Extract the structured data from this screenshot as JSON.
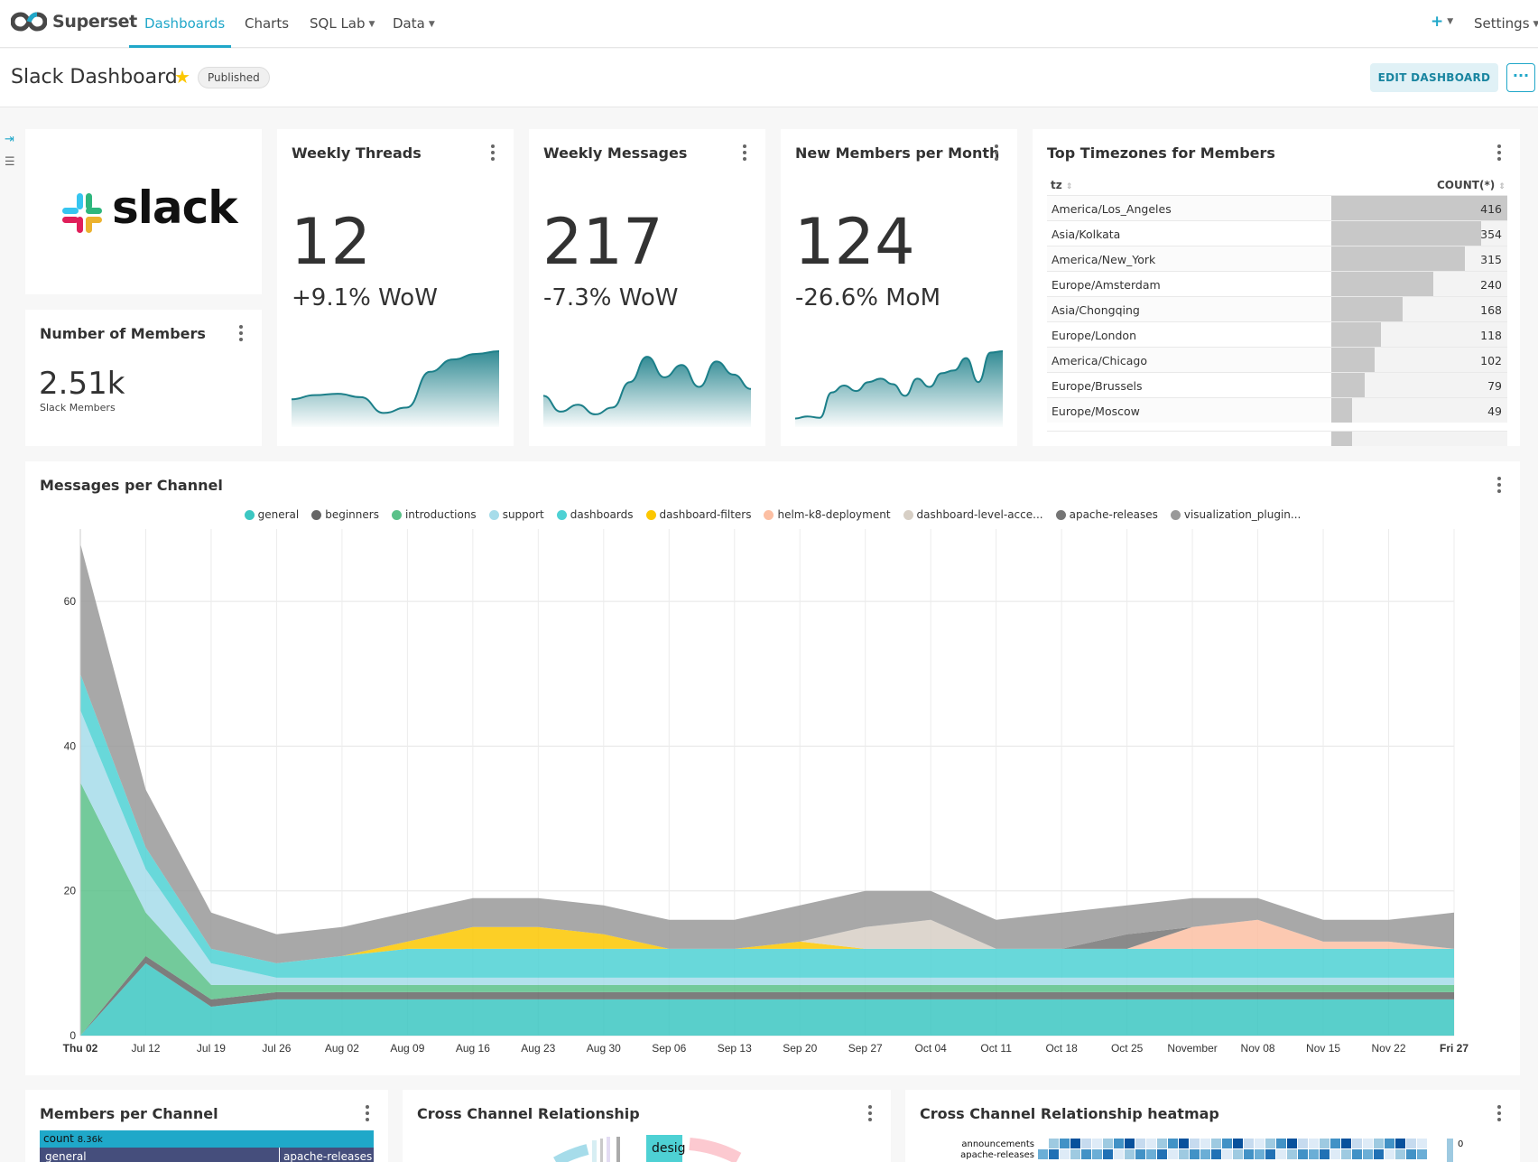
{
  "app": {
    "name": "Superset"
  },
  "nav": {
    "items": [
      {
        "label": "Dashboards",
        "active": true
      },
      {
        "label": "Charts"
      },
      {
        "label": "SQL Lab",
        "dropdown": true
      },
      {
        "label": "Data",
        "dropdown": true
      }
    ],
    "plus_icon": "plus-icon",
    "settings_label": "Settings"
  },
  "header": {
    "title": "Slack Dashboard",
    "starred": true,
    "status_badge": "Published",
    "edit_button": "EDIT DASHBOARD",
    "more_button": "···"
  },
  "cards": {
    "logo": {
      "text": "slack"
    },
    "members": {
      "title": "Number of Members",
      "value": "2.51k",
      "subtitle": "Slack Members"
    },
    "weekly_threads": {
      "title": "Weekly Threads",
      "value": "12",
      "change": "+9.1% WoW",
      "trend": [
        0.3,
        0.36,
        0.38,
        0.33,
        0.1,
        0.18,
        0.7,
        0.88,
        0.96,
        1.0
      ]
    },
    "weekly_messages": {
      "title": "Weekly Messages",
      "value": "217",
      "change": "-7.3% WoW",
      "trend": [
        0.35,
        0.12,
        0.22,
        0.08,
        0.18,
        0.55,
        0.92,
        0.62,
        0.8,
        0.48,
        0.85,
        0.66,
        0.45
      ]
    },
    "new_members": {
      "title": "New Members per Month",
      "value": "124",
      "change": "-26.6% MoM",
      "trend": [
        0.02,
        0.05,
        0.03,
        0.4,
        0.5,
        0.42,
        0.55,
        0.6,
        0.52,
        0.35,
        0.6,
        0.48,
        0.68,
        0.72,
        0.9,
        0.55,
        0.98,
        1.0
      ]
    },
    "timezones": {
      "title": "Top Timezones for Members",
      "columns": [
        "tz",
        "COUNT(*)"
      ],
      "rows": [
        {
          "tz": "America/Los_Angeles",
          "count": 416
        },
        {
          "tz": "Asia/Kolkata",
          "count": 354
        },
        {
          "tz": "America/New_York",
          "count": 315
        },
        {
          "tz": "Europe/Amsterdam",
          "count": 240
        },
        {
          "tz": "Asia/Chongqing",
          "count": 168
        },
        {
          "tz": "Europe/London",
          "count": 118
        },
        {
          "tz": "America/Chicago",
          "count": 102
        },
        {
          "tz": "Europe/Brussels",
          "count": 79
        },
        {
          "tz": "Europe/Moscow",
          "count": 49
        }
      ]
    },
    "messages_per_channel": {
      "title": "Messages per Channel"
    },
    "members_per_channel": {
      "title": "Members per Channel",
      "count_label": "count",
      "count_value": "8.36k",
      "general_label": "general",
      "releases_label": "apache-releases"
    },
    "cross_channel": {
      "title": "Cross Channel Relationship",
      "snippet": "desig"
    },
    "heatmap": {
      "title": "Cross Channel Relationship heatmap",
      "rows": [
        "announcements",
        "apache-releases"
      ],
      "scale_label": "0"
    }
  },
  "chart_data": {
    "type": "area",
    "title": "Messages per Channel",
    "stacked": true,
    "legend_position": "top",
    "grid": true,
    "ylim": [
      0,
      70
    ],
    "yticks": [
      0,
      20,
      40,
      60
    ],
    "xticks": [
      "Thu 02",
      "Jul 12",
      "Jul 19",
      "Jul 26",
      "Aug 02",
      "Aug 09",
      "Aug 16",
      "Aug 23",
      "Aug 30",
      "Sep 06",
      "Sep 13",
      "Sep 20",
      "Sep 27",
      "Oct 04",
      "Oct 11",
      "Oct 18",
      "Oct 25",
      "November",
      "Nov 08",
      "Nov 15",
      "Nov 22",
      "Fri 27"
    ],
    "series": [
      {
        "name": "general",
        "color": "#3cc7c2",
        "values": [
          0,
          10,
          4,
          5,
          5,
          5,
          5,
          5,
          5,
          5,
          5,
          5,
          5,
          5,
          5,
          5,
          5,
          5,
          5,
          5,
          5,
          5
        ]
      },
      {
        "name": "beginners",
        "color": "#666666",
        "values": [
          0,
          1,
          1,
          1,
          1,
          1,
          1,
          1,
          1,
          1,
          1,
          1,
          1,
          1,
          1,
          1,
          1,
          1,
          1,
          1,
          1,
          1
        ]
      },
      {
        "name": "introductions",
        "color": "#5ac189",
        "values": [
          35,
          6,
          2,
          1,
          1,
          1,
          1,
          1,
          1,
          1,
          1,
          1,
          1,
          1,
          1,
          1,
          1,
          1,
          1,
          1,
          1,
          1
        ]
      },
      {
        "name": "support",
        "color": "#a6dcea",
        "values": [
          10,
          6,
          3,
          1,
          1,
          1,
          1,
          1,
          1,
          1,
          1,
          1,
          1,
          1,
          1,
          1,
          1,
          1,
          1,
          1,
          1,
          1
        ]
      },
      {
        "name": "dashboards",
        "color": "#4ed1d4",
        "values": [
          5,
          3,
          2,
          2,
          3,
          4,
          4,
          4,
          4,
          4,
          4,
          4,
          4,
          4,
          4,
          4,
          4,
          4,
          4,
          4,
          4,
          4
        ]
      },
      {
        "name": "dashboard-filters",
        "color": "#fcc700",
        "values": [
          0,
          0,
          0,
          0,
          0,
          1,
          3,
          3,
          2,
          0,
          0,
          1,
          0,
          0,
          0,
          0,
          0,
          0,
          0,
          0,
          0,
          0
        ]
      },
      {
        "name": "helm-k8-deployment",
        "color": "#fcbfa3",
        "values": [
          0,
          0,
          0,
          0,
          0,
          0,
          0,
          0,
          0,
          0,
          0,
          0,
          0,
          0,
          0,
          0,
          0,
          3,
          4,
          1,
          1,
          0
        ]
      },
      {
        "name": "dashboard-level-acce...",
        "color": "#d7cfc5",
        "values": [
          0,
          0,
          0,
          0,
          0,
          0,
          0,
          0,
          0,
          0,
          0,
          0,
          3,
          4,
          0,
          0,
          0,
          0,
          0,
          0,
          0,
          0
        ]
      },
      {
        "name": "apache-releases",
        "color": "#757575",
        "values": [
          0,
          0,
          0,
          0,
          0,
          0,
          0,
          0,
          0,
          0,
          0,
          0,
          0,
          0,
          0,
          0,
          2,
          0,
          0,
          0,
          0,
          0
        ]
      },
      {
        "name": "visualization_plugin...",
        "color": "#999999",
        "values": [
          18,
          8,
          5,
          4,
          4,
          4,
          4,
          4,
          4,
          4,
          4,
          5,
          5,
          4,
          4,
          5,
          4,
          4,
          3,
          3,
          3,
          5
        ]
      }
    ]
  }
}
